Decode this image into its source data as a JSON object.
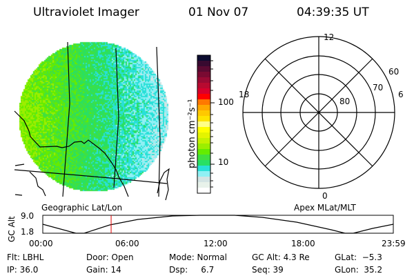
{
  "header": {
    "instrument": "Ultraviolet Imager",
    "date": "01 Nov 07",
    "time": "04:39:35 UT"
  },
  "colorbar": {
    "label": "photon cm⁻²s⁻¹",
    "ticks": [
      "100",
      "10"
    ],
    "colors": [
      "#0c0c30",
      "#380a30",
      "#5a0a32",
      "#7a0a32",
      "#9a0a34",
      "#b80a30",
      "#d8002c",
      "#ff0000",
      "#ff7800",
      "#ffa800",
      "#ffc800",
      "#ffe400",
      "#ffff88",
      "#ffff00",
      "#e4f400",
      "#c4f200",
      "#9cee00",
      "#64ec00",
      "#40e040",
      "#28e064",
      "#28e0d8",
      "#90f0f4",
      "#d4e4e4",
      "#e8f2ea",
      "#ffffff"
    ]
  },
  "polar": {
    "labels": {
      "top": "12",
      "left": "18",
      "right": "6",
      "bottom": "0"
    },
    "rings": [
      "60",
      "70",
      "80"
    ]
  },
  "image_panel": {
    "label": "Geographic Lat/Lon"
  },
  "polar_panel": {
    "label": "Apex MLat/MLT"
  },
  "altitude_plot": {
    "ylabel": "GC Alt",
    "yticks": [
      "9.0",
      "1.8"
    ],
    "xticks": [
      "00:00",
      "06:00",
      "12:00",
      "18:00",
      "23:59"
    ],
    "current_time_fraction": 0.195,
    "marker_color": "#e00000"
  },
  "status": {
    "row1": [
      "Flt: LBHL",
      "Door: Open",
      "Mode: Normal",
      "GC Alt: 4.3 Re",
      "GLat:  −5.3"
    ],
    "row2": [
      "IP: 36.0",
      "Gain: 14",
      "Dsp:     6.7",
      "Seq: 39",
      "GLon:  35.2"
    ]
  }
}
